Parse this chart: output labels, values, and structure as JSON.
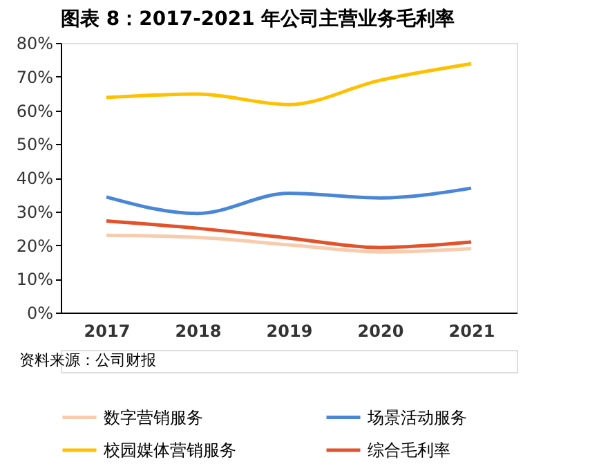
{
  "chart_data": {
    "type": "line",
    "title": "图表 8：2017-2021 年公司主营业务毛利率",
    "categories": [
      "2017",
      "2018",
      "2019",
      "2020",
      "2021"
    ],
    "series": [
      {
        "name": "数字营销服务",
        "color": "#f8cbad",
        "values": [
          22.9,
          22.3,
          20.1,
          18.0,
          19.0
        ]
      },
      {
        "name": "场景活动服务",
        "color": "#4a86d8",
        "values": [
          34.3,
          29.4,
          35.4,
          34.0,
          36.9
        ]
      },
      {
        "name": "校园媒体营销服务",
        "color": "#ffc000",
        "values": [
          63.8,
          64.8,
          61.7,
          68.9,
          73.8
        ]
      },
      {
        "name": "综合毛利率",
        "color": "#e2522b",
        "values": [
          27.2,
          25.0,
          22.1,
          19.3,
          20.9
        ]
      }
    ],
    "ylim": [
      0,
      80
    ],
    "yticks": [
      {
        "value": 0,
        "label": "0%"
      },
      {
        "value": 10,
        "label": "10%"
      },
      {
        "value": 20,
        "label": "20%"
      },
      {
        "value": 30,
        "label": "30%"
      },
      {
        "value": 40,
        "label": "40%"
      },
      {
        "value": 50,
        "label": "50%"
      },
      {
        "value": 60,
        "label": "60%"
      },
      {
        "value": 70,
        "label": "70%"
      },
      {
        "value": 80,
        "label": "80%"
      }
    ],
    "grid": false,
    "legend": "bottom",
    "marker": "none",
    "line_style": "solid",
    "annotations": [
      "资料来源：公司财报"
    ]
  }
}
